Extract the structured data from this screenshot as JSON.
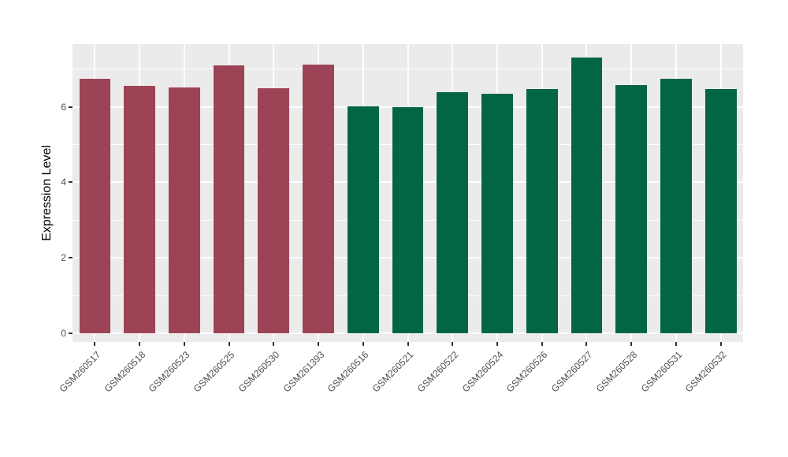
{
  "chart_data": {
    "type": "bar",
    "title": "",
    "xlabel": "",
    "ylabel": "Expression Level",
    "ylim": [
      0,
      7.76
    ],
    "y_major_ticks": [
      0,
      2,
      4,
      6
    ],
    "y_tick_labels": [
      "0",
      "2",
      "4",
      "6"
    ],
    "y_minor_gridlines": [
      1,
      3,
      5,
      7
    ],
    "grid": "on",
    "legend_position": "none",
    "categories": [
      "GSM260517",
      "GSM260518",
      "GSM260523",
      "GSM260525",
      "GSM260530",
      "GSM261393",
      "GSM260516",
      "GSM260521",
      "GSM260522",
      "GSM260524",
      "GSM260526",
      "GSM260527",
      "GSM260528",
      "GSM260531",
      "GSM260532"
    ],
    "values": [
      6.75,
      6.56,
      6.52,
      7.1,
      6.5,
      7.12,
      6.02,
      6.0,
      6.38,
      6.35,
      6.47,
      7.3,
      6.57,
      6.75,
      6.48
    ],
    "groups": [
      "group1",
      "group1",
      "group1",
      "group1",
      "group1",
      "group1",
      "group2",
      "group2",
      "group2",
      "group2",
      "group2",
      "group2",
      "group2",
      "group2",
      "group2"
    ],
    "group_colors": {
      "group1": "#9C4355",
      "group2": "#026646"
    }
  },
  "style": {
    "figure_background": "#FFFFFF",
    "panel_background": "#EBEBEB",
    "gridline_color": "#FFFFFF",
    "tick_label_color": "#4D4D4D",
    "axis_title_color": "#000000",
    "tick_mark_color": "#333333"
  }
}
